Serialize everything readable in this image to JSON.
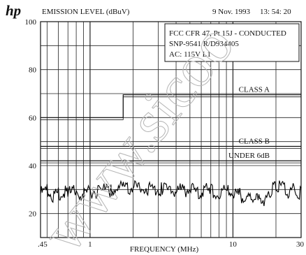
{
  "header": {
    "logo": "hp",
    "title": "EMISSION LEVEL (dBuV)",
    "date": "9 Nov. 1993",
    "time": "13: 54: 20"
  },
  "info_box": {
    "line1": "FCC CFR 47, Pt 15J - CONDUCTED",
    "line2": "SNP-9541  R/D934405",
    "line3": "AC: 115V   L1"
  },
  "watermark": "www.sicoo",
  "chart_data": {
    "type": "line",
    "title": "EMISSION LEVEL (dBuV)",
    "xlabel": "FREQUENCY (MHz)",
    "ylabel": "EMISSION LEVEL (dBuV)",
    "x_scale": "log",
    "xlim": [
      0.45,
      30
    ],
    "ylim": [
      10,
      100
    ],
    "grid": true,
    "x_tick_labels": [
      ".45",
      "1",
      "10",
      "30"
    ],
    "y_ticks": [
      20,
      40,
      60,
      80,
      100
    ],
    "limit_lines": [
      {
        "name": "CLASS A",
        "points": [
          [
            0.45,
            60
          ],
          [
            1.705,
            60
          ],
          [
            1.705,
            69.5
          ],
          [
            30,
            69.5
          ]
        ]
      },
      {
        "name": "CLASS B",
        "points": [
          [
            0.45,
            48
          ],
          [
            30,
            48
          ]
        ]
      },
      {
        "name": "UNDER 6dB",
        "points": [
          [
            0.45,
            42
          ],
          [
            30,
            42
          ]
        ]
      }
    ],
    "series": [
      {
        "x": [
          0.45,
          0.5,
          0.55,
          0.6,
          0.7,
          0.8,
          0.9,
          1.0,
          1.2,
          1.4,
          1.6,
          1.8,
          2.0,
          2.2,
          2.5,
          2.8,
          3.2,
          3.6,
          4.0,
          4.5,
          5.0,
          5.5,
          6.0,
          7.0,
          8.0,
          9.0,
          10.0,
          11.0,
          12.0,
          13.0,
          14.0,
          15.0,
          16.0,
          17.0,
          18.0,
          19.0,
          20.0,
          22.0,
          24.0,
          26.0,
          28.0,
          30.0
        ],
        "values": [
          29.5,
          30.5,
          28.5,
          30,
          29.5,
          30.5,
          29,
          30.5,
          31,
          30.5,
          32,
          31,
          32.5,
          31.5,
          32,
          30.5,
          31.5,
          30,
          31,
          30.5,
          31.5,
          30,
          30.5,
          31,
          29.5,
          30.5,
          30,
          29,
          28,
          26.5,
          27.5,
          26.5,
          27,
          27.5,
          29,
          33,
          31.5,
          32,
          30.5,
          31,
          30,
          30.5
        ]
      }
    ]
  }
}
